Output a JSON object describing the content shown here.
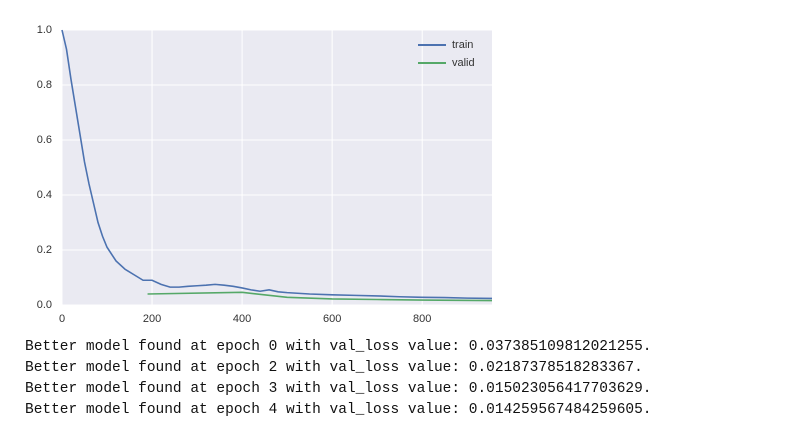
{
  "chart_data": {
    "type": "line",
    "xlim": [
      0,
      955
    ],
    "ylim": [
      0,
      1.0
    ],
    "xticks": [
      0,
      200,
      400,
      600,
      800
    ],
    "yticks": [
      {
        "value": 0,
        "label": "0.0"
      },
      0.2,
      0.4,
      0.6,
      0.8,
      {
        "value": 1.0,
        "label": "1.0"
      }
    ],
    "grid": true,
    "legend": "upper right",
    "series": [
      {
        "name": "train",
        "color": "#4c72b0",
        "x": [
          0,
          10,
          20,
          30,
          40,
          50,
          60,
          70,
          80,
          90,
          100,
          120,
          140,
          160,
          180,
          200,
          220,
          240,
          260,
          280,
          300,
          320,
          340,
          360,
          380,
          400,
          420,
          440,
          460,
          480,
          500,
          550,
          600,
          650,
          700,
          750,
          800,
          850,
          900,
          955
        ],
        "values": [
          1.0,
          0.93,
          0.82,
          0.72,
          0.62,
          0.52,
          0.44,
          0.37,
          0.3,
          0.25,
          0.21,
          0.16,
          0.13,
          0.11,
          0.09,
          0.09,
          0.075,
          0.065,
          0.065,
          0.068,
          0.07,
          0.072,
          0.075,
          0.072,
          0.068,
          0.062,
          0.055,
          0.05,
          0.055,
          0.048,
          0.045,
          0.04,
          0.037,
          0.035,
          0.033,
          0.03,
          0.028,
          0.027,
          0.025,
          0.024
        ]
      },
      {
        "name": "valid",
        "color": "#55a868",
        "x": [
          190,
          400,
          500,
          600,
          700,
          800,
          955
        ],
        "values": [
          0.04,
          0.046,
          0.028,
          0.022,
          0.02,
          0.018,
          0.016
        ]
      }
    ]
  },
  "output": {
    "lines": [
      "Better model found at epoch 0 with val_loss value: 0.037385109812021255.",
      "Better model found at epoch 2 with val_loss value: 0.02187378518283367.",
      "Better model found at epoch 3 with val_loss value: 0.015023056417703629.",
      "Better model found at epoch 4 with val_loss value: 0.014259567484259605."
    ]
  }
}
